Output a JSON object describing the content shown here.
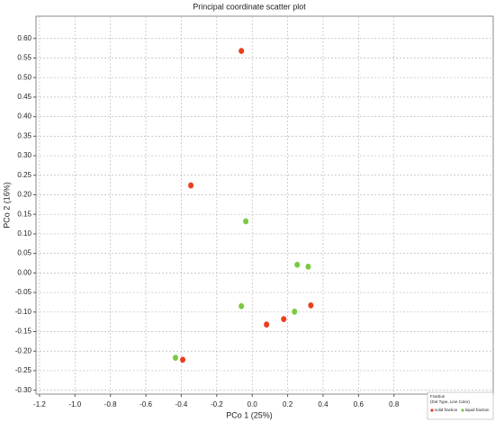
{
  "chart_data": {
    "type": "scatter",
    "title": "Principal coordinate scatter plot",
    "x_label": "PCo 1 (25%)",
    "y_label": "PCo 2 (16%)",
    "legend_title": "Fraction",
    "legend_subtitle": "(Dot Type, Line Color)",
    "legend_position": "lower right",
    "grid": true,
    "xlim": [
      -1.22,
      1.36
    ],
    "ylim": [
      -0.31,
      0.657
    ],
    "xticks": [
      -1.2,
      {
        "value": -1.0,
        "label": "-1.0"
      },
      -0.8,
      -0.6,
      -0.4,
      -0.2,
      {
        "value": 0,
        "label": "0.0"
      },
      0.2,
      0.4,
      0.6,
      0.8
    ],
    "yticks": [
      {
        "value": -0.3,
        "label": "-0.30"
      },
      -0.25,
      {
        "value": -0.2,
        "label": "-0.20"
      },
      -0.15,
      {
        "value": -0.1,
        "label": "-0.10"
      },
      -0.05,
      {
        "value": 0,
        "label": "0.00"
      },
      0.05,
      {
        "value": 0.1,
        "label": "0.10"
      },
      0.15,
      {
        "value": 0.2,
        "label": "0.20"
      },
      0.25,
      {
        "value": 0.3,
        "label": "0.30"
      },
      0.35,
      {
        "value": 0.4,
        "label": "0.40"
      },
      0.45,
      {
        "value": 0.5,
        "label": "0.50"
      },
      0.55,
      {
        "value": 0.6,
        "label": "0.60"
      }
    ],
    "series": [
      {
        "name": "solid fraction",
        "color": "#e8401c",
        "x": [
          -0.061,
          -0.346,
          0.081,
          0.178,
          0.331,
          -0.392
        ],
        "values": [
          0.568,
          0.224,
          -0.132,
          -0.118,
          -0.083,
          -0.222
        ]
      },
      {
        "name": "liquid fraction",
        "color": "#7ac943",
        "x": [
          -0.036,
          0.254,
          0.316,
          0.239,
          -0.061,
          -0.433
        ],
        "values": [
          0.132,
          0.021,
          0.016,
          -0.099,
          -0.085,
          -0.217
        ]
      }
    ]
  }
}
